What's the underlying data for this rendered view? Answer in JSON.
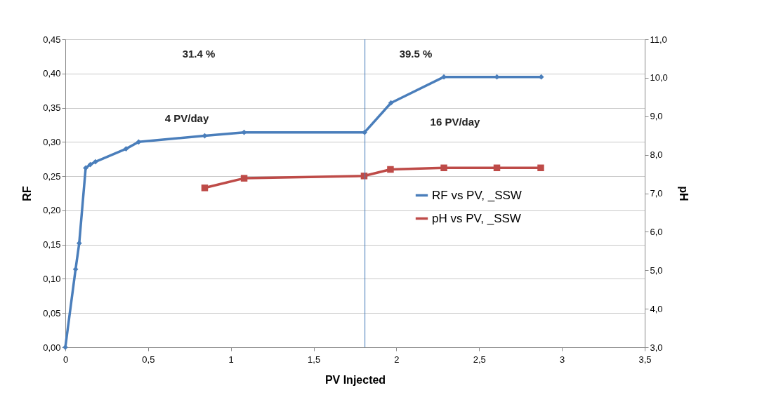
{
  "chart_data": {
    "type": "line",
    "xlabel": "PV Injected",
    "ylabel": "RF",
    "y2label": "pH",
    "series": [
      {
        "name": "RF vs PV, _SSW",
        "color": "#4a7ebb",
        "marker": "diamond",
        "x": [
          0,
          0.062,
          0.084,
          0.123,
          0.151,
          0.182,
          0.367,
          0.443,
          0.842,
          1.08,
          1.808,
          1.967,
          2.287,
          2.607,
          2.875
        ],
        "values": [
          0,
          0.114,
          0.152,
          0.262,
          0.267,
          0.271,
          0.29,
          0.3,
          0.309,
          0.314,
          0.314,
          0.357,
          0.395,
          0.395,
          0.395
        ]
      },
      {
        "name": "pH vs PV, _SSW",
        "color": "#be4b48",
        "marker": "square",
        "axis": "y2",
        "x": [
          0.842,
          1.08,
          1.805,
          1.964,
          2.287,
          2.607,
          2.872
        ],
        "values": [
          7.14,
          7.39,
          7.45,
          7.62,
          7.66,
          7.66,
          7.66
        ]
      }
    ],
    "xlim": [
      0,
      3.5
    ],
    "xticks": [
      0,
      {
        "value": 0.5,
        "label": "0,5"
      },
      1,
      {
        "value": 1.5,
        "label": "1,5"
      },
      2,
      {
        "value": 2.5,
        "label": "2,5"
      },
      3,
      {
        "value": 3.5,
        "label": "3,5"
      }
    ],
    "ylim": [
      0,
      0.45
    ],
    "yticks": [
      {
        "value": 0,
        "label": "0,00"
      },
      {
        "value": 0.05,
        "label": "0,05"
      },
      {
        "value": 0.1,
        "label": "0,10"
      },
      {
        "value": 0.15,
        "label": "0,15"
      },
      {
        "value": 0.2,
        "label": "0,20"
      },
      {
        "value": 0.25,
        "label": "0,25"
      },
      {
        "value": 0.3,
        "label": "0,30"
      },
      {
        "value": 0.35,
        "label": "0,35"
      },
      {
        "value": 0.4,
        "label": "0,40"
      },
      {
        "value": 0.45,
        "label": "0,45"
      }
    ],
    "y2lim": [
      3,
      11
    ],
    "y2ticks": [
      {
        "value": 3,
        "label": "3,0"
      },
      {
        "value": 4,
        "label": "4,0"
      },
      {
        "value": 5,
        "label": "5,0"
      },
      {
        "value": 6,
        "label": "6,0"
      },
      {
        "value": 7,
        "label": "7,0"
      },
      {
        "value": 8,
        "label": "8,0"
      },
      {
        "value": 9,
        "label": "9,0"
      },
      {
        "value": 10,
        "label": "10,0"
      },
      {
        "value": 11,
        "label": "11,0"
      }
    ],
    "ref_lines": [
      {
        "axis": "x",
        "value": 1.81,
        "color": "#4a7ebb"
      }
    ],
    "annotations": [
      "31.4 %",
      "39.5 %",
      "4 PV/day",
      "16 PV/day"
    ],
    "grid": "y",
    "legend": "bottom right",
    "line_style": "solid"
  }
}
